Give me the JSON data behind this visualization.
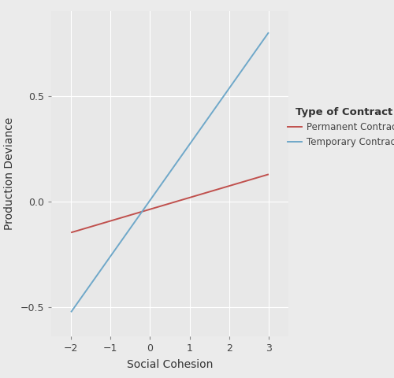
{
  "title": "",
  "xlabel": "Social Cohesion",
  "ylabel": "Production Deviance",
  "legend_title": "Type of Contract",
  "plot_bg_color": "#E8E8E8",
  "fig_bg_color": "#EBEBEB",
  "grid_color": "#FFFFFF",
  "lines": [
    {
      "label": "Permanent Contract",
      "color": "#C0504D",
      "x": [
        -2,
        3
      ],
      "y": [
        -0.148,
        0.128
      ]
    },
    {
      "label": "Temporary Contract",
      "color": "#6FA8C9",
      "x": [
        -2,
        3
      ],
      "y": [
        -0.525,
        0.8
      ]
    }
  ],
  "xlim": [
    -2.5,
    3.5
  ],
  "ylim": [
    -0.64,
    0.9
  ],
  "xticks": [
    -2,
    -1,
    0,
    1,
    2,
    3
  ],
  "yticks": [
    -0.5,
    0.0,
    0.5
  ],
  "ytick_labels": [
    "−0.5",
    "0.0",
    "0.5"
  ],
  "xtick_labels": [
    "−2",
    "−1",
    "0",
    "1",
    "2",
    "3"
  ],
  "axis_label_fontsize": 10,
  "tick_fontsize": 9,
  "legend_fontsize": 8.5,
  "legend_title_fontsize": 9.5,
  "line_width": 1.4
}
